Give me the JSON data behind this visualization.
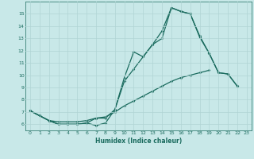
{
  "line1_x": [
    0,
    1,
    2,
    3,
    4,
    5,
    6,
    7,
    8,
    9,
    10,
    11,
    12,
    13,
    14,
    15,
    16,
    17,
    18,
    19,
    20,
    21,
    22,
    23
  ],
  "line1_y": [
    7.1,
    6.7,
    6.3,
    6.0,
    6.0,
    6.0,
    6.1,
    5.9,
    6.1,
    7.2,
    9.8,
    11.9,
    11.5,
    12.5,
    13.0,
    15.5,
    15.2,
    15.0,
    13.1,
    11.8,
    10.2,
    10.1,
    9.1,
    null
  ],
  "line2_x": [
    0,
    1,
    2,
    3,
    4,
    5,
    6,
    7,
    8,
    9,
    10,
    11,
    12,
    13,
    14,
    15,
    16,
    17,
    18,
    19,
    20,
    21,
    22,
    23
  ],
  "line2_y": [
    7.1,
    6.7,
    6.3,
    6.2,
    6.2,
    6.2,
    6.3,
    6.5,
    6.6,
    7.0,
    7.5,
    7.9,
    8.3,
    8.7,
    9.1,
    9.5,
    9.8,
    10.0,
    10.2,
    10.4,
    null,
    null,
    null,
    null
  ],
  "line3_x": [
    0,
    1,
    2,
    3,
    4,
    5,
    6,
    7,
    8,
    9,
    10,
    11,
    12,
    13,
    14,
    15,
    16,
    17,
    18,
    19,
    20,
    21,
    22,
    23
  ],
  "line3_y": [
    7.1,
    6.7,
    6.3,
    6.0,
    6.0,
    6.0,
    6.1,
    6.5,
    6.5,
    7.2,
    9.5,
    10.5,
    11.5,
    12.5,
    13.6,
    15.5,
    15.2,
    15.0,
    13.2,
    11.8,
    10.2,
    10.1,
    9.1,
    null
  ],
  "color": "#1a6b5e",
  "background_color": "#c8e8e8",
  "grid_color": "#b0d4d4",
  "xlabel": "Humidex (Indice chaleur)",
  "ylim": [
    5.5,
    16.0
  ],
  "xlim": [
    -0.5,
    23.5
  ],
  "yticks": [
    6,
    7,
    8,
    9,
    10,
    11,
    12,
    13,
    14,
    15
  ],
  "xticks": [
    0,
    1,
    2,
    3,
    4,
    5,
    6,
    7,
    8,
    9,
    10,
    11,
    12,
    13,
    14,
    15,
    16,
    17,
    18,
    19,
    20,
    21,
    22,
    23
  ]
}
